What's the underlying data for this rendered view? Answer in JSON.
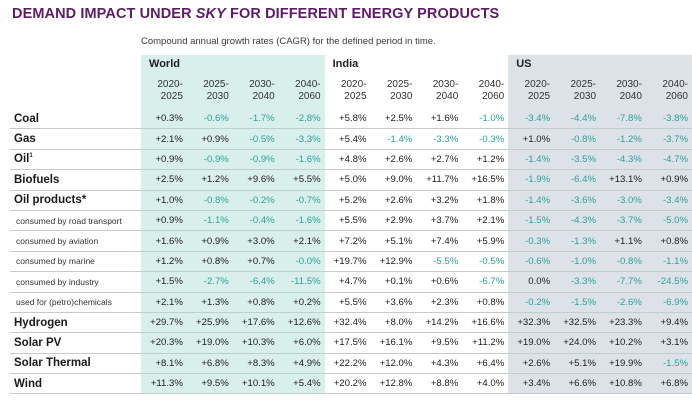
{
  "title_prefix": "DEMAND IMPACT UNDER ",
  "title_emph": "SKY",
  "title_suffix": " FOR DIFFERENT ENERGY PRODUCTS",
  "subtitle": "Compound annual growth rates (CAGR) for the defined period in time.",
  "colors": {
    "title": "#5c1d66",
    "negative": "#2aa39a",
    "world_bg": "#d9efec",
    "us_bg": "#dde2e8"
  },
  "regions": [
    "World",
    "India",
    "US"
  ],
  "periods": [
    [
      "2020-",
      "2025"
    ],
    [
      "2025-",
      "2030"
    ],
    [
      "2030-",
      "2040"
    ],
    [
      "2040-",
      "2060"
    ]
  ],
  "rows": [
    {
      "label": "Coal",
      "type": "main",
      "values": [
        "+0.3%",
        "-0.6%",
        "-1.7%",
        "-2.8%",
        "+5.8%",
        "+2.5%",
        "+1.6%",
        "-1.0%",
        "-3.4%",
        "-4.4%",
        "-7.8%",
        "-3.8%"
      ]
    },
    {
      "label": "Gas",
      "type": "main",
      "values": [
        "+2.1%",
        "+0.9%",
        "-0.5%",
        "-3.3%",
        "+5.4%",
        "-1.4%",
        "-3.3%",
        "-0.3%",
        "+1.0%",
        "-0.8%",
        "-1.2%",
        "-3.7%"
      ]
    },
    {
      "label": "Oil",
      "sup": "1",
      "type": "main",
      "values": [
        "+0.9%",
        "-0.9%",
        "-0.9%",
        "-1.6%",
        "+4.8%",
        "+2.6%",
        "+2.7%",
        "+1.2%",
        "-1.4%",
        "-3.5%",
        "-4.3%",
        "-4.7%"
      ]
    },
    {
      "label": "Biofuels",
      "type": "main",
      "values": [
        "+2.5%",
        "+1.2%",
        "+9.6%",
        "+5.5%",
        "+5.0%",
        "+9.0%",
        "+11.7%",
        "+16.5%",
        "-1.9%",
        "-6.4%",
        "+13.1%",
        "+0.9%"
      ]
    },
    {
      "label": "Oil products*",
      "type": "main",
      "values": [
        "+1.0%",
        "-0.8%",
        "-0.2%",
        "-0.7%",
        "+5.2%",
        "+2.6%",
        "+3.2%",
        "+1.8%",
        "-1.4%",
        "-3.6%",
        "-3.0%",
        "-3.4%"
      ]
    },
    {
      "label": "consumed by road transport",
      "type": "sub",
      "values": [
        "+0.9%",
        "-1.1%",
        "-0.4%",
        "-1.6%",
        "+5.5%",
        "+2.9%",
        "+3.7%",
        "+2.1%",
        "-1.5%",
        "-4.3%",
        "-3.7%",
        "-5.0%"
      ]
    },
    {
      "label": "consumed by aviation",
      "type": "sub",
      "values": [
        "+1.6%",
        "+0.9%",
        "+3.0%",
        "+2.1%",
        "+7.2%",
        "+5.1%",
        "+7.4%",
        "+5.9%",
        "-0.3%",
        "-1.3%",
        "+1.1%",
        "+0.8%"
      ]
    },
    {
      "label": "consumed by marine",
      "type": "sub",
      "values": [
        "+1.2%",
        "+0.8%",
        "+0.7%",
        "-0.0%",
        "+19.7%",
        "+12.9%",
        "-5.5%",
        "-0.5%",
        "-0.6%",
        "-1.0%",
        "-0.8%",
        "-1.1%"
      ]
    },
    {
      "label": "consumed by industry",
      "type": "sub",
      "values": [
        "+1.5%",
        "-2.7%",
        "-6.4%",
        "-11.5%",
        "+4.7%",
        "+0.1%",
        "+0.6%",
        "-6.7%",
        "0.0%",
        "-3.3%",
        "-7.7%",
        "-24.5%"
      ]
    },
    {
      "label": "used for (petro)chemicals",
      "type": "sub",
      "values": [
        "+2.1%",
        "+1.3%",
        "+0.8%",
        "+0.2%",
        "+5.5%",
        "+3.6%",
        "+2.3%",
        "+0.8%",
        "-0.2%",
        "-1.5%",
        "-2.6%",
        "-6.9%"
      ]
    },
    {
      "label": "Hydrogen",
      "type": "main",
      "values": [
        "+29.7%",
        "+25.9%",
        "+17.6%",
        "+12.6%",
        "+32.4%",
        "+8.0%",
        "+14.2%",
        "+16.6%",
        "+32.3%",
        "+32.5%",
        "+23.3%",
        "+9.4%"
      ]
    },
    {
      "label": "Solar PV",
      "type": "main",
      "values": [
        "+20.3%",
        "+19.0%",
        "+10.3%",
        "+6.0%",
        "+17.5%",
        "+16.1%",
        "+9.5%",
        "+11.2%",
        "+19.0%",
        "+24.0%",
        "+10.2%",
        "+3.1%"
      ]
    },
    {
      "label": "Solar Thermal",
      "type": "main",
      "values": [
        "+8.1%",
        "+6.8%",
        "+8.3%",
        "+4.9%",
        "+22.2%",
        "+12.0%",
        "+4.3%",
        "+6.4%",
        "+2.6%",
        "+5.1%",
        "+19.9%",
        "-1.5%"
      ]
    },
    {
      "label": "Wind",
      "type": "main",
      "values": [
        "+11.3%",
        "+9.5%",
        "+10.1%",
        "+5.4%",
        "+20.2%",
        "+12.8%",
        "+8.8%",
        "+4.0%",
        "+3.4%",
        "+6.6%",
        "+10.8%",
        "+6.8%"
      ]
    }
  ]
}
